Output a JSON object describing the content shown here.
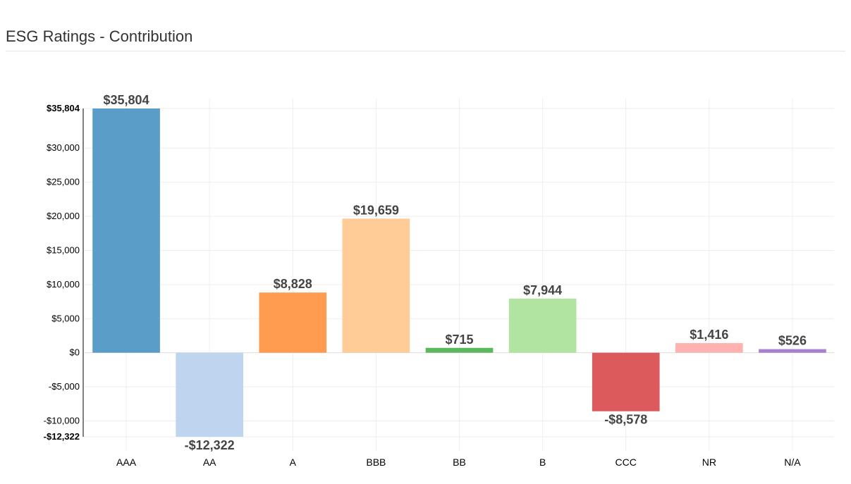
{
  "header": {
    "title": "ESG Ratings - Contribution"
  },
  "chart_data": {
    "type": "bar",
    "title": "ESG Ratings - Contribution",
    "xlabel": "",
    "ylabel": "",
    "categories": [
      "AAA",
      "AA",
      "A",
      "BBB",
      "BB",
      "B",
      "CCC",
      "NR",
      "N/A"
    ],
    "values": [
      35804,
      -12322,
      8828,
      19659,
      715,
      7944,
      -8578,
      1416,
      526
    ],
    "value_labels": [
      "$35,804",
      "-$12,322",
      "$8,828",
      "$19,659",
      "$715",
      "$7,944",
      "-$8,578",
      "$1,416",
      "$526"
    ],
    "colors": [
      "#5b9dc9",
      "#bfd4ee",
      "#ff9c50",
      "#ffcb96",
      "#5cb85c",
      "#b1e4a0",
      "#dd5a5c",
      "#ffb2b0",
      "#a97fd0"
    ],
    "ylim": [
      -12322,
      35804
    ],
    "yticks": [
      -10000,
      -5000,
      0,
      5000,
      10000,
      15000,
      20000,
      25000,
      30000
    ],
    "ytick_labels": [
      "-$10,000",
      "-$5,000",
      "$0",
      "$5,000",
      "$10,000",
      "$15,000",
      "$20,000",
      "$25,000",
      "$30,000"
    ],
    "ymax_label": "$35,804",
    "ymin_label": "-$12,322",
    "grid": true,
    "legend": "none"
  }
}
